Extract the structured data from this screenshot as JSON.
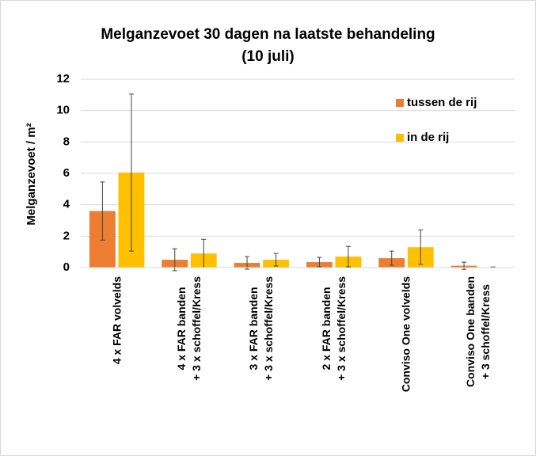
{
  "chart_data": {
    "type": "bar",
    "title": "Melganzevoet 30 dagen na laatste behandeling\n(10 juli)",
    "ylabel": "Melganzevoet / m²",
    "categories": [
      "4 x FAR volvelds",
      "4 x FAR banden\n+ 3 x schoffel/Kress",
      "3 x FAR banden\n+ 3 x schoffel/Kress",
      "2 x FAR banden\n+ 3 x schoffel/Kress",
      "Conviso One  volvelds",
      "Conviso One banden\n+ 3 schoffel/Kress"
    ],
    "series": [
      {
        "name": "tussen de rij",
        "color": "#ED7D31",
        "values": [
          3.6,
          0.5,
          0.3,
          0.35,
          0.6,
          0.12
        ],
        "errors": [
          1.85,
          0.7,
          0.4,
          0.3,
          0.45,
          0.23
        ]
      },
      {
        "name": "in de rij",
        "color": "#FFC000",
        "values": [
          6.05,
          0.9,
          0.5,
          0.7,
          1.3,
          0.02
        ],
        "errors": [
          5.0,
          0.9,
          0.4,
          0.65,
          1.1,
          0.02
        ]
      }
    ],
    "ylim": [
      0,
      12
    ],
    "yticks": [
      0,
      2,
      4,
      6,
      8,
      10,
      12
    ],
    "grid": true,
    "legend": "top-right"
  }
}
